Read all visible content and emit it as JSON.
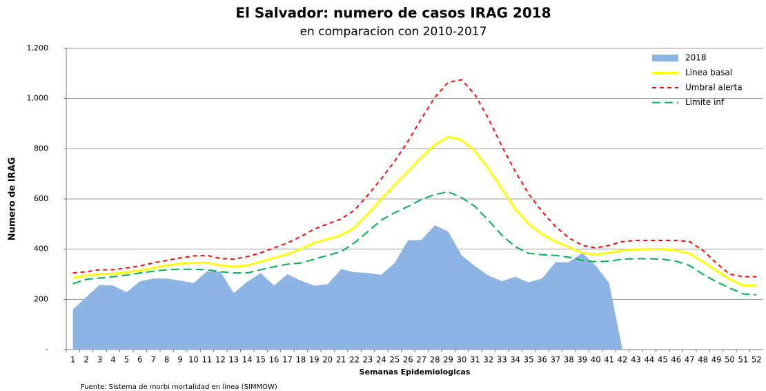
{
  "chart_data": {
    "type": "line",
    "title": "El Salvador: numero de casos IRAG 2018",
    "subtitle": "en comparacion con 2010-2017",
    "y_label": "Numero de IRAG",
    "x_label": "Semanas Epidemiologicas",
    "source": "Fuente: Sistema de morbi mortalidad en línea (SIMMOW)",
    "categories": [
      "1",
      "2",
      "3",
      "4",
      "5",
      "6",
      "7",
      "8",
      "9",
      "10",
      "11",
      "12",
      "13",
      "14",
      "15",
      "16",
      "17",
      "18",
      "19",
      "20",
      "21",
      "22",
      "23",
      "24",
      "25",
      "26",
      "27",
      "28",
      "29",
      "30",
      "31",
      "32",
      "33",
      "34",
      "35",
      "36",
      "37",
      "38",
      "39",
      "40",
      "41",
      "42",
      "43",
      "44",
      "45",
      "46",
      "47",
      "48",
      "49",
      "50",
      "51",
      "52"
    ],
    "series": [
      {
        "name": "2018",
        "type": "area",
        "color": "#8eb4e3",
        "values": [
          160,
          210,
          258,
          255,
          228,
          272,
          283,
          283,
          275,
          265,
          312,
          310,
          225,
          270,
          305,
          255,
          300,
          275,
          255,
          260,
          320,
          308,
          305,
          298,
          345,
          435,
          437,
          495,
          470,
          375,
          332,
          295,
          272,
          290,
          268,
          283,
          348,
          348,
          385,
          335,
          265,
          0,
          null,
          null,
          null,
          null,
          null,
          null,
          null,
          null,
          null,
          null
        ]
      },
      {
        "name": "Linea basal",
        "type": "line",
        "linestyle": "solid",
        "color": "#ffff00",
        "values": [
          285,
          295,
          300,
          302,
          308,
          315,
          325,
          335,
          342,
          345,
          345,
          335,
          330,
          335,
          350,
          365,
          380,
          400,
          425,
          440,
          455,
          485,
          540,
          600,
          655,
          710,
          765,
          815,
          848,
          835,
          790,
          720,
          640,
          560,
          500,
          460,
          430,
          408,
          385,
          378,
          385,
          395,
          398,
          400,
          400,
          395,
          383,
          350,
          315,
          280,
          255,
          255
        ]
      },
      {
        "name": "Umbral alerta",
        "type": "line",
        "linestyle": "dashed",
        "color": "#ff0000",
        "values": [
          305,
          310,
          318,
          318,
          325,
          333,
          345,
          355,
          365,
          373,
          375,
          363,
          360,
          370,
          385,
          405,
          425,
          450,
          480,
          500,
          520,
          555,
          615,
          680,
          750,
          830,
          920,
          1005,
          1065,
          1075,
          1015,
          920,
          810,
          710,
          620,
          550,
          490,
          445,
          415,
          405,
          415,
          430,
          435,
          435,
          435,
          435,
          430,
          395,
          345,
          300,
          290,
          290
        ]
      },
      {
        "name": "Limite inf",
        "type": "line",
        "linestyle": "long-dashed",
        "color": "#00b050",
        "values": [
          262,
          280,
          285,
          290,
          297,
          305,
          312,
          318,
          320,
          320,
          318,
          310,
          305,
          305,
          318,
          330,
          340,
          345,
          360,
          375,
          390,
          425,
          470,
          515,
          545,
          570,
          598,
          618,
          628,
          605,
          570,
          515,
          455,
          410,
          383,
          378,
          375,
          368,
          355,
          350,
          352,
          360,
          362,
          362,
          360,
          352,
          335,
          300,
          270,
          245,
          222,
          218
        ]
      }
    ],
    "ylim": [
      0,
      1200
    ],
    "yticks": [
      {
        "value": 0,
        "label": "-"
      },
      200,
      400,
      600,
      800,
      {
        "value": 1000,
        "label": "1,000"
      },
      {
        "value": 1200,
        "label": "1,200"
      }
    ],
    "grid": true,
    "legend": "upper right"
  }
}
